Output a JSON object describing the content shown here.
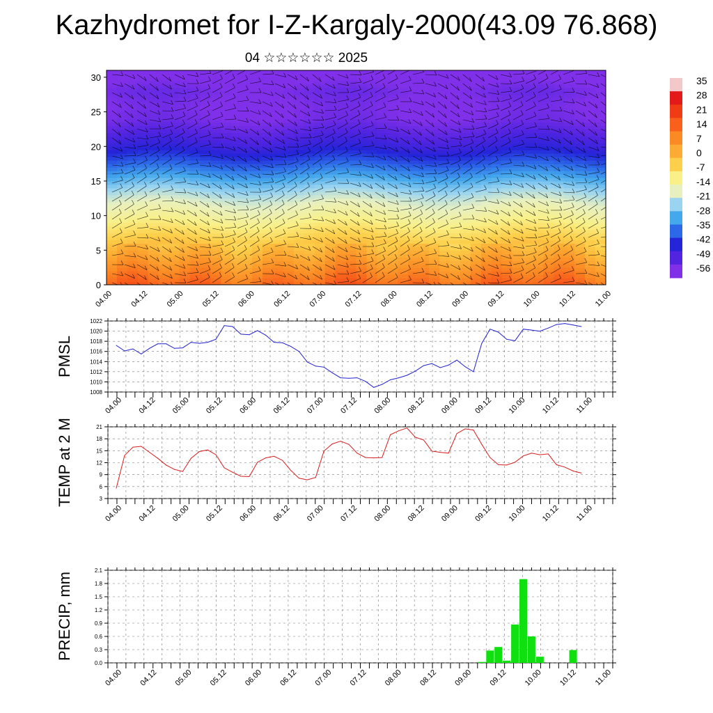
{
  "title": "Kazhydromet for I-Z-Kargaly-2000(43.09 76.868)",
  "subtitle": "04 ☆☆☆☆☆☆ 2025",
  "time_labels": [
    "04.00",
    "04.12",
    "05.00",
    "05.12",
    "06.00",
    "06.12",
    "07.00",
    "07.12",
    "08.00",
    "08.12",
    "09.00",
    "09.12",
    "10.00",
    "10.12",
    "11.00"
  ],
  "colorbar": {
    "labels": [
      "35",
      "28",
      "21",
      "14",
      "7",
      "0",
      "-7",
      "-14",
      "-21",
      "-28",
      "-35",
      "-42",
      "-49",
      "-56"
    ],
    "colors": [
      "#f2c8c8",
      "#e41a1a",
      "#f03c14",
      "#f8601c",
      "#fb8a24",
      "#fcac34",
      "#fdd04c",
      "#f9f088",
      "#e8f0c0",
      "#9ad4f0",
      "#44a8ec",
      "#2c68e8",
      "#2424d8",
      "#5224e0",
      "#8030e8"
    ]
  },
  "chart_data": [
    {
      "type": "heatmap",
      "name_note": "temperature cross-section with wind barbs",
      "xlabel": "",
      "ylabel": "",
      "ylim": [
        0,
        31
      ],
      "yticks": [
        0,
        5,
        10,
        15,
        20,
        25,
        30
      ],
      "x": [
        "04.00",
        "04.12",
        "05.00",
        "05.12",
        "06.00",
        "06.12",
        "07.00",
        "07.12",
        "08.00",
        "08.12",
        "09.00",
        "09.12",
        "10.00",
        "10.12",
        "11.00"
      ],
      "levels_km": [
        0,
        2,
        4,
        6,
        8,
        10,
        12,
        14,
        16,
        18,
        20,
        22,
        24,
        26,
        28,
        30
      ],
      "temperature_profile_by_level": [
        20,
        14,
        8,
        2,
        -4,
        -10,
        -15,
        -22,
        -30,
        -38,
        -45,
        -50,
        -55,
        -56,
        -54,
        -58
      ]
    },
    {
      "type": "line",
      "ylabel": "PMSL",
      "ylim": [
        1008,
        1022
      ],
      "yticks": [
        1008,
        1010,
        1012,
        1014,
        1016,
        1018,
        1020,
        1022
      ],
      "x": [
        "04.00",
        "04.03",
        "04.06",
        "04.09",
        "04.12",
        "04.15",
        "04.18",
        "04.21",
        "05.00",
        "05.03",
        "05.06",
        "05.09",
        "05.12",
        "05.15",
        "05.18",
        "05.21",
        "06.00",
        "06.03",
        "06.06",
        "06.09",
        "06.12",
        "06.15",
        "06.18",
        "06.21",
        "07.00",
        "07.03",
        "07.06",
        "07.09",
        "07.12",
        "07.15",
        "07.18",
        "07.21",
        "08.00",
        "08.03",
        "08.06",
        "08.09",
        "08.12",
        "08.15",
        "08.18",
        "08.21",
        "09.00",
        "09.03",
        "09.06",
        "09.09",
        "09.12",
        "09.15",
        "09.18",
        "09.21",
        "10.00",
        "10.03",
        "10.06",
        "10.09",
        "10.12",
        "10.15",
        "10.18",
        "10.21",
        "11.00"
      ],
      "series": [
        {
          "color": "#1f1fd0",
          "values": [
            1017.2,
            1016.1,
            1016.5,
            1015.5,
            1016.6,
            1017.5,
            1017.5,
            1016.6,
            1016.7,
            1017.8,
            1017.6,
            1017.8,
            1018.4,
            1021.1,
            1020.9,
            1019.4,
            1019.3,
            1020.1,
            1019.2,
            1017.8,
            1017.7,
            1017.0,
            1016.0,
            1013.9,
            1013.1,
            1012.9,
            1011.8,
            1010.8,
            1010.7,
            1010.8,
            1010.1,
            1008.9,
            1009.5,
            1010.4,
            1010.8,
            1011.3,
            1012.1,
            1013.2,
            1013.6,
            1012.8,
            1013.3,
            1014.3,
            1013.0,
            1012.0,
            1017.6,
            1020.4,
            1019.8,
            1018.4,
            1018.1,
            1020.4,
            1020.2,
            1020.0,
            1020.6,
            1021.3,
            1021.5,
            1021.2,
            1020.9
          ]
        }
      ]
    },
    {
      "type": "line",
      "ylabel": "TEMP at 2 M",
      "ylim": [
        3,
        21
      ],
      "yticks": [
        3,
        6,
        9,
        12,
        15,
        18,
        21
      ],
      "series": [
        {
          "color": "#d81c1c",
          "values": [
            5.6,
            13.8,
            15.9,
            16.1,
            14.6,
            13.1,
            11.4,
            10.3,
            9.8,
            13.1,
            14.8,
            15.2,
            14.0,
            10.7,
            9.6,
            8.6,
            8.5,
            12.1,
            13.2,
            13.6,
            12.6,
            10.1,
            8.1,
            7.7,
            8.3,
            14.9,
            16.7,
            17.4,
            16.6,
            14.4,
            13.3,
            13.2,
            13.3,
            19.0,
            20.0,
            20.7,
            18.4,
            17.7,
            14.9,
            14.6,
            14.4,
            19.3,
            20.5,
            20.2,
            16.6,
            13.3,
            11.5,
            11.4,
            12.1,
            13.7,
            14.4,
            14.0,
            14.2,
            11.5,
            10.9,
            9.9,
            9.4
          ]
        }
      ]
    },
    {
      "type": "bar",
      "ylabel": "PRECIP, mm",
      "ylim": [
        0,
        2.1
      ],
      "yticks": [
        "0.0",
        "0.3",
        "0.6",
        "0.9",
        "1.2",
        "1.5",
        "1.8",
        "2.1"
      ],
      "bars": [
        {
          "x": "09.12",
          "value": 0.02
        },
        {
          "x": "09.15",
          "value": 0.28
        },
        {
          "x": "09.18",
          "value": 0.36
        },
        {
          "x": "09.21",
          "value": 0.05
        },
        {
          "x": "10.00",
          "value": 0.87
        },
        {
          "x": "10.03",
          "value": 1.9
        },
        {
          "x": "10.06",
          "value": 0.6
        },
        {
          "x": "10.09",
          "value": 0.14
        },
        {
          "x": "10.21",
          "value": 0.29
        }
      ],
      "bar_color": "#10e010"
    }
  ]
}
